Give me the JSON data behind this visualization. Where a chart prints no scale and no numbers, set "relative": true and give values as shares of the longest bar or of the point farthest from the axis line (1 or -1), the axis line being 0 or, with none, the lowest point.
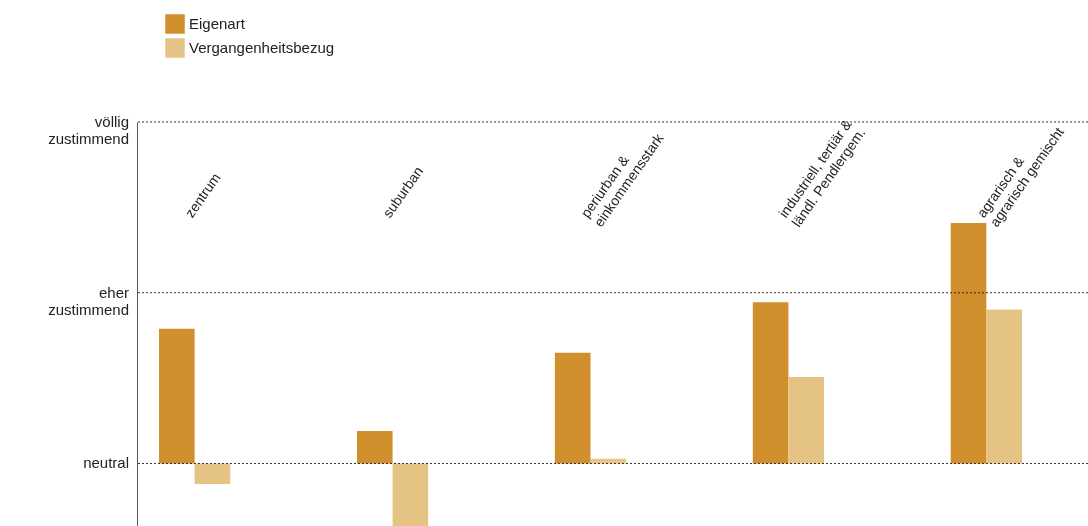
{
  "chart_data": {
    "type": "bar",
    "relative": true,
    "categories": [
      "zentrum",
      "suburban",
      "periurban &\neinkommensstark",
      "industriell, tertiär &\nländl. Pendlergem.",
      "agrarisch &\nagrarisch gemischt"
    ],
    "series": [
      {
        "name": "Eigenart",
        "color": "#d08e2c",
        "values": [
          0.56,
          0.135,
          0.46,
          0.67,
          1
        ]
      },
      {
        "name": "Vergangenheitsbezug",
        "color": "#e5c385",
        "values": [
          -0.085,
          -0.26,
          0.02,
          0.36,
          0.64
        ]
      }
    ],
    "ref_lines": [
      {
        "axis": "y",
        "value": 0,
        "label": "neutral",
        "line_style": "dotted"
      },
      {
        "axis": "y",
        "value": 0.71,
        "label": "eher\nzustimmend",
        "line_style": "dotted"
      },
      {
        "axis": "y",
        "value": 1.42,
        "label": "völlig\nzustimmend",
        "line_style": "dotted"
      }
    ],
    "legend": "top left"
  }
}
